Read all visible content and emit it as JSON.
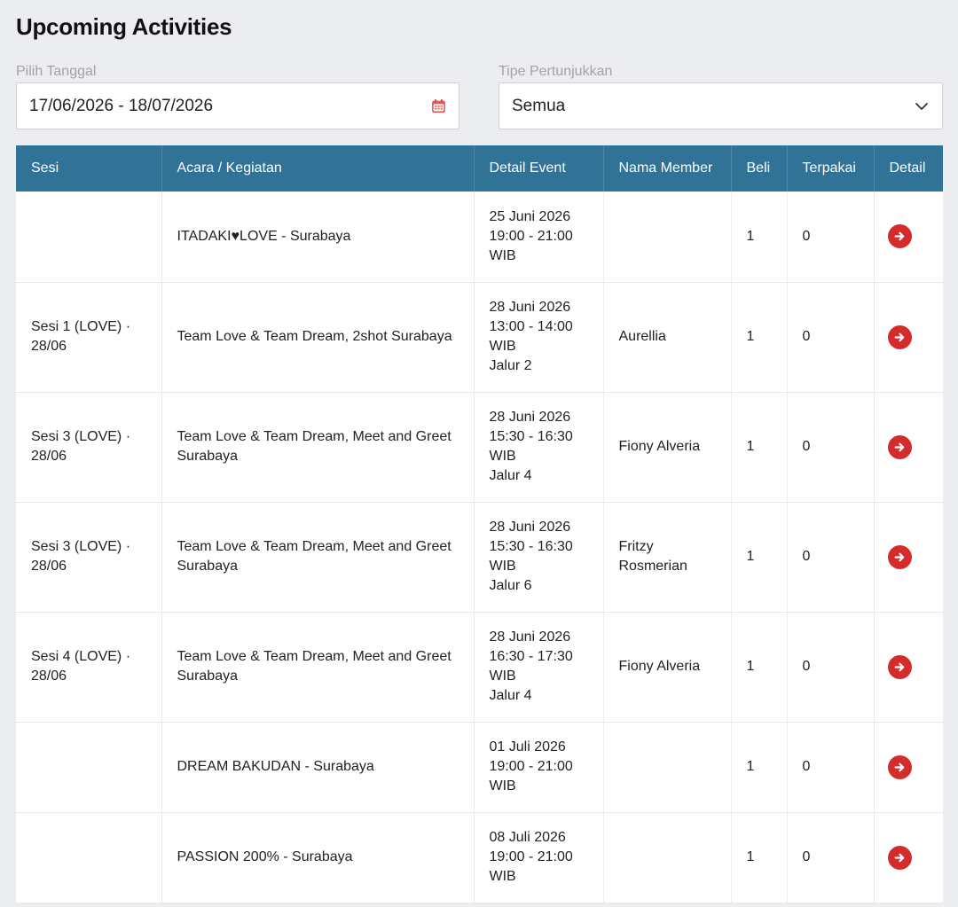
{
  "page": {
    "title": "Upcoming Activities"
  },
  "filters": {
    "date_label": "Pilih Tanggal",
    "date_value": "17/06/2026 - 18/07/2026",
    "type_label": "Tipe Pertunjukkan",
    "type_value": "Semua"
  },
  "table": {
    "columns": [
      "Sesi",
      "Acara / Kegiatan",
      "Detail Event",
      "Nama Member",
      "Beli",
      "Terpakai",
      "Detail"
    ],
    "rows": [
      {
        "sesi": "",
        "acara": "ITADAKI♥LOVE - Surabaya",
        "detail": [
          "25 Juni 2026",
          "19:00 - 21:00",
          "WIB"
        ],
        "member": "",
        "beli": "1",
        "terpakai": "0"
      },
      {
        "sesi": "Sesi 1 (LOVE) · 28/06",
        "acara": "Team Love & Team Dream, 2shot Surabaya",
        "detail": [
          "28 Juni 2026",
          "13:00 - 14:00",
          "WIB",
          "Jalur 2"
        ],
        "member": "Aurellia",
        "beli": "1",
        "terpakai": "0"
      },
      {
        "sesi": "Sesi 3 (LOVE) · 28/06",
        "acara": "Team Love & Team Dream, Meet and Greet Surabaya",
        "detail": [
          "28 Juni 2026",
          "15:30 - 16:30",
          "WIB",
          "Jalur 4"
        ],
        "member": "Fiony Alveria",
        "beli": "1",
        "terpakai": "0"
      },
      {
        "sesi": "Sesi 3 (LOVE) · 28/06",
        "acara": "Team Love & Team Dream, Meet and Greet Surabaya",
        "detail": [
          "28 Juni 2026",
          "15:30 - 16:30",
          "WIB",
          "Jalur 6"
        ],
        "member": "Fritzy Rosmerian",
        "beli": "1",
        "terpakai": "0"
      },
      {
        "sesi": "Sesi 4 (LOVE) · 28/06",
        "acara": "Team Love & Team Dream, Meet and Greet Surabaya",
        "detail": [
          "28 Juni 2026",
          "16:30 - 17:30",
          "WIB",
          "Jalur 4"
        ],
        "member": "Fiony Alveria",
        "beli": "1",
        "terpakai": "0"
      },
      {
        "sesi": "",
        "acara": "DREAM BAKUDAN - Surabaya",
        "detail": [
          "01 Juli 2026",
          "19:00 - 21:00",
          "WIB"
        ],
        "member": "",
        "beli": "1",
        "terpakai": "0"
      },
      {
        "sesi": "",
        "acara": "PASSION 200% - Surabaya",
        "detail": [
          "08 Juli 2026",
          "19:00 - 21:00",
          "WIB"
        ],
        "member": "",
        "beli": "1",
        "terpakai": "0"
      }
    ]
  },
  "icons": {
    "calendar": "calendar-icon",
    "chevron": "chevron-down-icon",
    "detail": "arrow-right-circle-icon"
  },
  "colors": {
    "header_bg": "#317297",
    "detail_button": "#d42b2b",
    "page_bg": "#ecedf0"
  }
}
